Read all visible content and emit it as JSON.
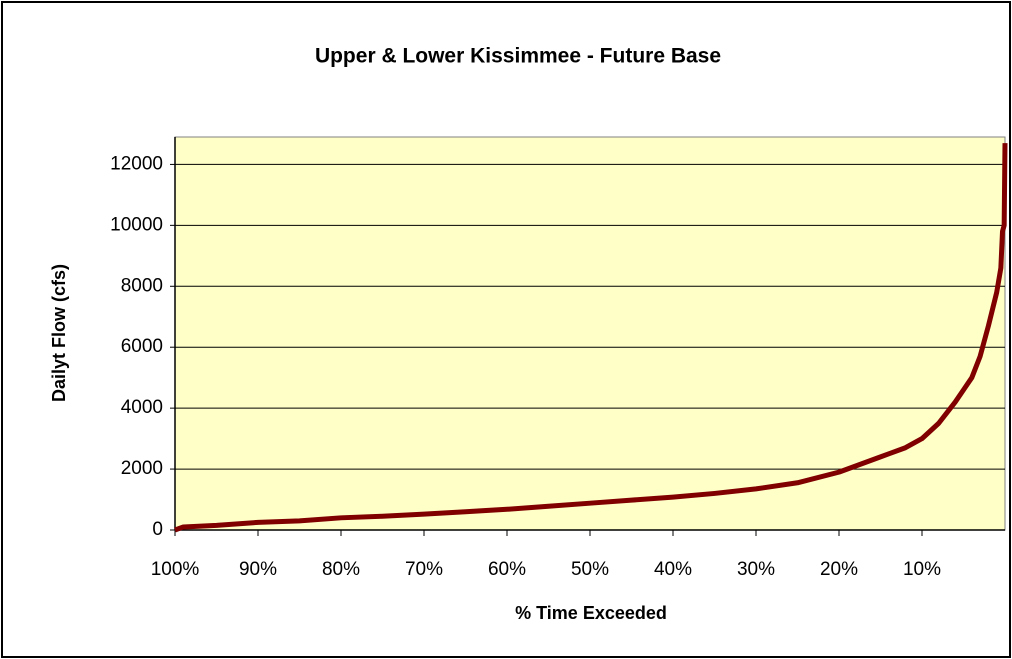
{
  "chart_data": {
    "type": "line",
    "title": "Upper & Lower Kissimmee - Future Base",
    "x_label": "% Time Exceeded",
    "y_label": "Dailyt Flow (cfs)",
    "x": [
      100,
      99,
      95,
      90,
      85,
      80,
      75,
      70,
      65,
      60,
      55,
      50,
      45,
      40,
      35,
      30,
      25,
      20,
      15,
      12,
      10,
      8,
      6,
      5,
      4,
      3,
      2,
      1,
      0.5,
      0.3,
      0.1,
      0
    ],
    "values": [
      0,
      100,
      150,
      250,
      300,
      400,
      450,
      520,
      600,
      680,
      780,
      880,
      980,
      1080,
      1200,
      1350,
      1550,
      1900,
      2400,
      2700,
      3000,
      3500,
      4200,
      4600,
      5000,
      5700,
      6700,
      7800,
      8600,
      9800,
      10000,
      12700
    ],
    "color": "#800000",
    "xlim": [
      100,
      0
    ],
    "xticks": [
      {
        "value": 100,
        "label": "100%"
      },
      {
        "value": 90,
        "label": "90%"
      },
      {
        "value": 80,
        "label": "80%"
      },
      {
        "value": 70,
        "label": "70%"
      },
      {
        "value": 60,
        "label": "60%"
      },
      {
        "value": 50,
        "label": "50%"
      },
      {
        "value": 40,
        "label": "40%"
      },
      {
        "value": 30,
        "label": "30%"
      },
      {
        "value": 20,
        "label": "20%"
      },
      {
        "value": 10,
        "label": "10%"
      }
    ],
    "ylim": [
      0,
      12900
    ],
    "yticks": [
      0,
      2000,
      4000,
      6000,
      8000,
      10000,
      12000
    ],
    "grid": true
  }
}
